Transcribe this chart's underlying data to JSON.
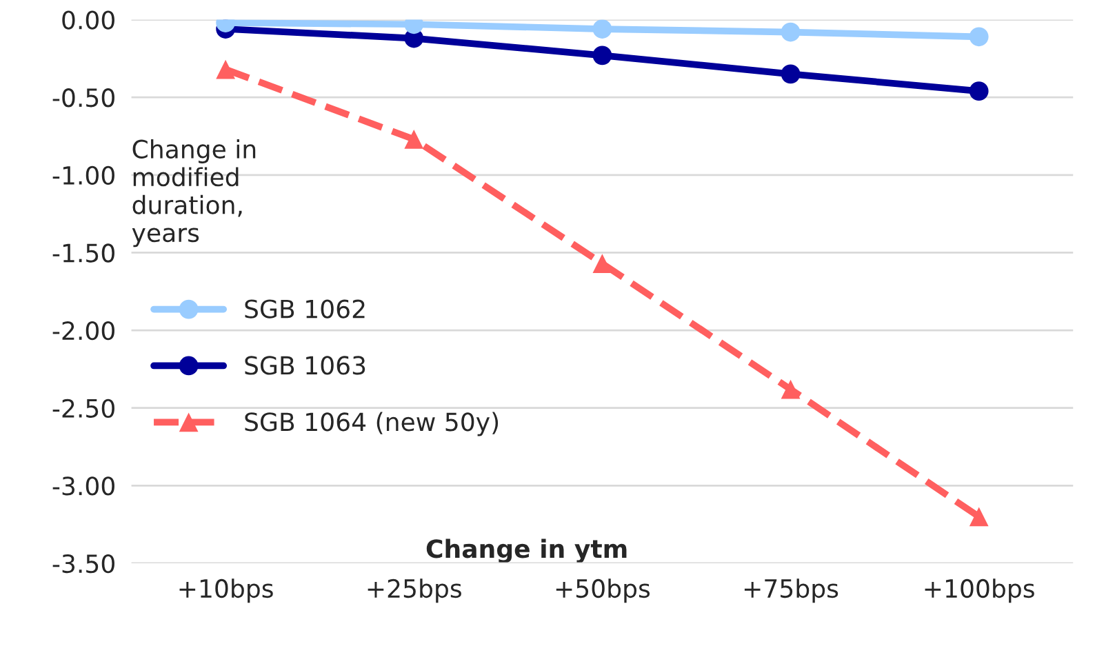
{
  "chart_data": {
    "type": "line",
    "xlabel": "Change in ytm",
    "ylabel": "Change in modified duration, years",
    "categories": [
      "+10bps",
      "+25bps",
      "+50bps",
      "+75bps",
      "+100bps"
    ],
    "series": [
      {
        "name": "SGB 1062",
        "color": "#99ccff",
        "values": [
          -0.02,
          -0.03,
          -0.06,
          -0.08,
          -0.11
        ],
        "marker": "circle",
        "line_style": "solid"
      },
      {
        "name": "SGB 1063",
        "color": "#000099",
        "values": [
          -0.06,
          -0.12,
          -0.23,
          -0.35,
          -0.46
        ],
        "marker": "circle",
        "line_style": "solid"
      },
      {
        "name": "SGB 1064 (new 50y)",
        "color": "#ff5f5f",
        "values": [
          -0.32,
          -0.77,
          -1.57,
          -2.38,
          -3.2
        ],
        "marker": "triangle",
        "line_style": "dashed"
      }
    ],
    "ylim": [
      -3.5,
      0
    ],
    "yticks": [
      {
        "value": -3.5,
        "label": "-3.50"
      },
      {
        "value": -3.0,
        "label": "-3.00"
      },
      {
        "value": -2.5,
        "label": "-2.50"
      },
      {
        "value": -2.0,
        "label": "-2.00"
      },
      {
        "value": -1.5,
        "label": "-1.50"
      },
      {
        "value": -1.0,
        "label": "-1.00"
      },
      {
        "value": -0.5,
        "label": "-0.50"
      },
      {
        "value": 0,
        "label": "0.00"
      }
    ],
    "grid": "y",
    "legend": "left"
  }
}
